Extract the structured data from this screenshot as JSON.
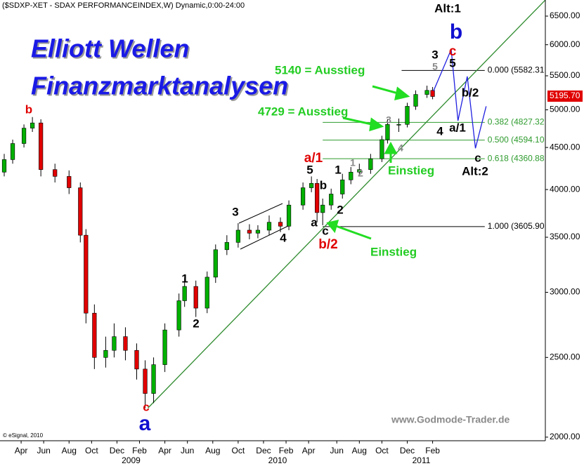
{
  "chart_data": {
    "type": "candlestick",
    "header": "($SDXP-XET - SDAX PERFORMANCEINDEX,W) Dynamic,0:00-24:00",
    "title": "Elliott Wellen",
    "subtitle": "Finanzmarktanalysen",
    "log_scale": true,
    "xlim": [
      0,
      193
    ],
    "ylim": [
      1980,
      6800
    ],
    "yticks": [
      {
        "value": 2000,
        "label": "2000.00"
      },
      {
        "value": 2500,
        "label": "2500.00"
      },
      {
        "value": 3000,
        "label": "3000.00"
      },
      {
        "value": 3500,
        "label": "3500.00"
      },
      {
        "value": 4000,
        "label": "4000.00"
      },
      {
        "value": 4500,
        "label": "4500.00"
      },
      {
        "value": 5000,
        "label": "5000.00"
      },
      {
        "value": 5500,
        "label": "5500.00"
      },
      {
        "value": 6000,
        "label": "6000.00"
      },
      {
        "value": 6500,
        "label": "6500.00"
      }
    ],
    "xticks": [
      {
        "value": 7,
        "label": "Apr"
      },
      {
        "value": 15,
        "label": "Jun"
      },
      {
        "value": 24,
        "label": "Aug"
      },
      {
        "value": 32,
        "label": "Oct"
      },
      {
        "value": 41,
        "label": "Dec"
      },
      {
        "value": 49,
        "label": "Feb"
      },
      {
        "value": 58,
        "label": "Apr"
      },
      {
        "value": 66,
        "label": "Jun"
      },
      {
        "value": 75,
        "label": "Aug"
      },
      {
        "value": 84,
        "label": "Oct"
      },
      {
        "value": 93,
        "label": "Dec"
      },
      {
        "value": 101,
        "label": "Feb"
      },
      {
        "value": 109,
        "label": "Apr"
      },
      {
        "value": 119,
        "label": "Jun"
      },
      {
        "value": 127,
        "label": "Aug"
      },
      {
        "value": 135,
        "label": "Oct"
      },
      {
        "value": 144,
        "label": "Dec"
      },
      {
        "value": 153,
        "label": "Feb"
      }
    ],
    "year_ticks": [
      {
        "value": 46,
        "label": "2009"
      },
      {
        "value": 98,
        "label": "2010"
      },
      {
        "value": 149,
        "label": "2011"
      }
    ],
    "up_color": "#00b000",
    "down_color": "#e00000",
    "x": [
      1,
      4,
      8,
      11,
      14,
      19,
      24,
      28,
      30,
      33,
      37,
      40,
      44,
      48,
      51,
      54,
      58,
      63,
      65,
      69,
      73,
      76,
      80,
      84,
      88,
      91,
      95,
      99,
      102,
      107,
      110,
      112,
      114,
      117,
      121,
      124,
      127,
      131,
      135,
      137,
      141,
      144,
      147,
      151,
      153
    ],
    "open": [
      4200,
      4350,
      4550,
      4750,
      4820,
      4230,
      4150,
      4020,
      3520,
      2830,
      2500,
      2550,
      2650,
      2550,
      2420,
      2260,
      2450,
      2700,
      2930,
      3050,
      2870,
      3130,
      3380,
      3450,
      3570,
      3540,
      3570,
      3650,
      3610,
      3830,
      4020,
      4070,
      3750,
      3830,
      3950,
      4110,
      4200,
      4230,
      4360,
      4600,
      4800,
      4800,
      5050,
      5220,
      5280
    ],
    "high": [
      4420,
      4600,
      4800,
      4900,
      4870,
      4300,
      4220,
      4080,
      3580,
      2900,
      2650,
      2750,
      2720,
      2600,
      2480,
      2500,
      2750,
      2990,
      3120,
      3100,
      3180,
      3430,
      3520,
      3640,
      3630,
      3620,
      3720,
      3700,
      3880,
      4080,
      4150,
      4120,
      3900,
      4010,
      4180,
      4260,
      4300,
      4420,
      4650,
      4870,
      4880,
      5100,
      5280,
      5350,
      5330
    ],
    "low": [
      4150,
      4300,
      4500,
      4700,
      4150,
      4080,
      3950,
      3450,
      2750,
      2420,
      2430,
      2500,
      2480,
      2350,
      2170,
      2200,
      2400,
      2650,
      2880,
      2800,
      2830,
      3080,
      3330,
      3400,
      3480,
      3490,
      3520,
      3550,
      3570,
      3780,
      3970,
      3650,
      3620,
      3780,
      3900,
      4060,
      4150,
      4180,
      4320,
      4550,
      4700,
      4760,
      5000,
      5170,
      5150
    ],
    "close": [
      4350,
      4550,
      4750,
      4820,
      4230,
      4150,
      4020,
      3520,
      2830,
      2500,
      2550,
      2650,
      2550,
      2420,
      2260,
      2450,
      2700,
      2930,
      3050,
      2870,
      3130,
      3380,
      3450,
      3570,
      3540,
      3570,
      3650,
      3610,
      3830,
      4020,
      4070,
      3750,
      3830,
      3950,
      4110,
      4200,
      4230,
      4360,
      4600,
      4800,
      4800,
      5050,
      5220,
      5280,
      5190
    ],
    "last_price": {
      "value": 5195.7,
      "label": "5195.70"
    },
    "trendline": {
      "color": "#2e8b2e",
      "x": [
        52,
        193
      ],
      "y": [
        2170,
        6800
      ]
    },
    "projection": {
      "color": "#2020e0",
      "x": [
        153.3,
        159.6,
        162,
        165.3,
        168.2,
        172
      ],
      "y": [
        5270,
        5920,
        4850,
        5490,
        4490,
        5050
      ]
    },
    "fib_end": 171.5,
    "fib_levels": [
      {
        "label": "0.000 (5582.31",
        "value": 5582.31,
        "start": 142,
        "color": "#000000"
      },
      {
        "label": "0.382 (4827.32",
        "value": 4827.32,
        "start": 114,
        "color": "#2e9b2e"
      },
      {
        "label": "0.500 (4594.10",
        "value": 4594.1,
        "start": 114,
        "color": "#2e9b2e"
      },
      {
        "label": "0.618 (4360.88",
        "value": 4360.88,
        "start": 114,
        "color": "#2e9b2e"
      },
      {
        "label": "1.000 (3605.90",
        "value": 3605.9,
        "start": 114,
        "color": "#000000"
      }
    ],
    "annotations": [
      "b",
      "c",
      "a",
      "1",
      "2",
      "3",
      "4",
      "5",
      "a/1",
      "b",
      "1",
      "2",
      "a",
      "c",
      "b/2",
      "1",
      "2",
      "3",
      "4",
      "3",
      "5",
      "c",
      "5",
      "b",
      "Alt:1",
      "b/2",
      "4",
      "a/1",
      "c",
      "Alt:2",
      "Einstieg",
      "Einstieg",
      "5140 = Ausstieg",
      "4729 = Ausstieg"
    ],
    "copyright": "© eSignal, 2010",
    "watermark": "www.Godmode-Trader.de"
  }
}
